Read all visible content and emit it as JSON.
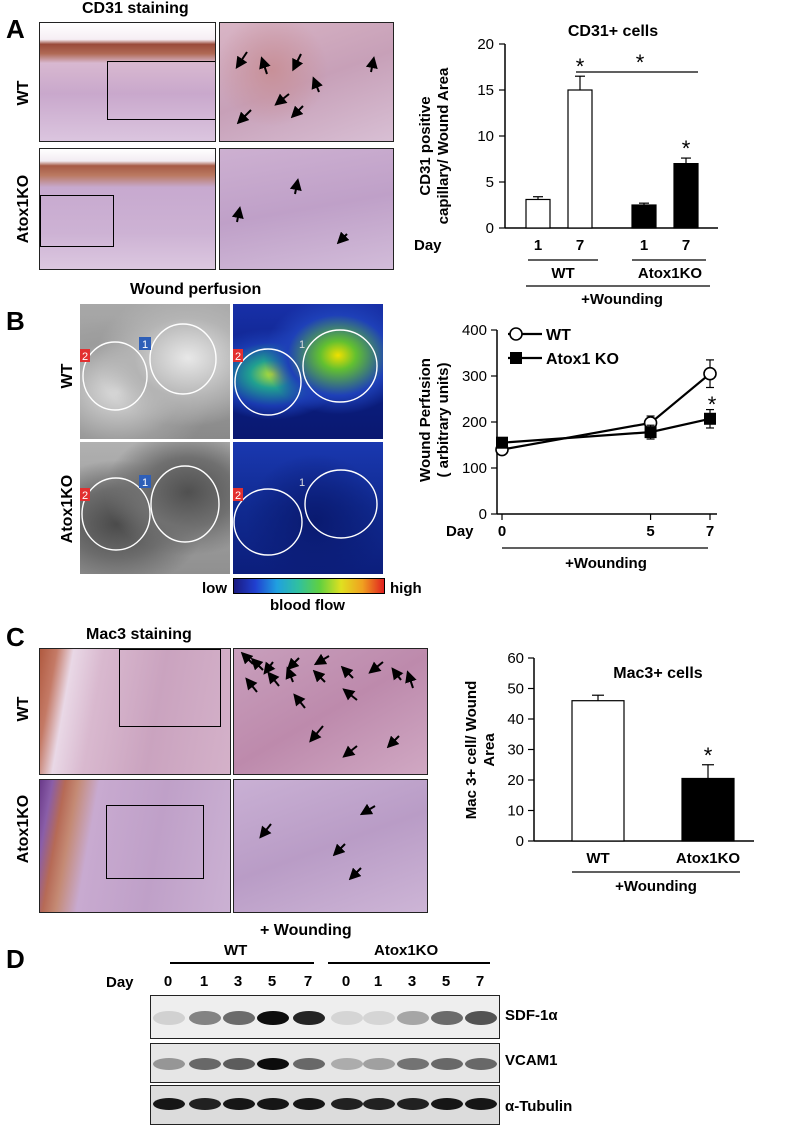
{
  "panelA": {
    "letter": "A",
    "title": "CD31 staining",
    "row_labels": [
      "WT",
      "Atox1KO"
    ],
    "chart_title": "CD31+ cells",
    "ylabel_line1": "CD31 positive",
    "ylabel_line2": "capillary/ Wound Area",
    "day_label": "Day",
    "group_labels": [
      "WT",
      "Atox1KO"
    ],
    "wounding": "+Wounding",
    "sig": "*"
  },
  "panelB": {
    "letter": "B",
    "title": "Wound perfusion",
    "row_labels": [
      "WT",
      "Atox1KO"
    ],
    "roi_labels": [
      "1",
      "2"
    ],
    "scale_low": "low",
    "scale_high": "high",
    "scale_label": "blood flow",
    "ylabel_line1": "Wound Perfusion",
    "ylabel_line2": "( arbitrary units)",
    "day_label": "Day",
    "wounding": "+Wounding",
    "sig": "*"
  },
  "panelC": {
    "letter": "C",
    "title": "Mac3 staining",
    "row_labels": [
      "WT",
      "Atox1KO"
    ],
    "chart_title": "Mac3+ cells",
    "ylabel_line1": "Mac 3+ cell/ Wound",
    "ylabel_line2": "Area",
    "wounding": "+Wounding",
    "sig": "*"
  },
  "panelD": {
    "letter": "D",
    "wounding": "+ Wounding",
    "groups": [
      "WT",
      "Atox1KO"
    ],
    "day_label": "Day",
    "days": [
      "0",
      "1",
      "3",
      "5",
      "7",
      "0",
      "1",
      "3",
      "5",
      "7"
    ],
    "bands": [
      "SDF-1α",
      "VCAM1",
      "α-Tubulin"
    ]
  },
  "chart_data": [
    {
      "type": "bar",
      "title": "CD31+ cells",
      "ylabel": "CD31 positive capillary/ Wound Area",
      "categories": [
        "1",
        "7",
        "1",
        "7"
      ],
      "groups": [
        "WT",
        "WT",
        "Atox1KO",
        "Atox1KO"
      ],
      "values": [
        3.1,
        15.0,
        2.5,
        7.0
      ],
      "errors": [
        0.3,
        1.5,
        0.2,
        0.6
      ],
      "fill": [
        "#ffffff",
        "#ffffff",
        "#000000",
        "#000000"
      ],
      "ylim": [
        0,
        20
      ],
      "yticks": [
        0,
        5,
        10,
        15,
        20
      ]
    },
    {
      "type": "line",
      "ylabel": "Wound Perfusion ( arbitrary units)",
      "x": [
        0,
        5,
        7
      ],
      "xticks": [
        "0",
        "5",
        "7"
      ],
      "ylim": [
        0,
        400
      ],
      "yticks": [
        0,
        100,
        200,
        300,
        400
      ],
      "series": [
        {
          "name": "WT",
          "values": [
            140,
            198,
            305
          ],
          "errors": [
            10,
            15,
            30
          ],
          "marker": "circle-open"
        },
        {
          "name": "Atox1 KO",
          "values": [
            155,
            178,
            207
          ],
          "errors": [
            10,
            15,
            20
          ],
          "marker": "square-filled"
        }
      ]
    },
    {
      "type": "bar",
      "title": "Mac3+ cells",
      "ylabel": "Mac 3+ cell/ Wound Area",
      "categories": [
        "WT",
        "Atox1KO"
      ],
      "values": [
        46,
        20.5
      ],
      "errors": [
        1.8,
        4.5
      ],
      "fill": [
        "#ffffff",
        "#000000"
      ],
      "ylim": [
        0,
        60
      ],
      "yticks": [
        0,
        10,
        20,
        30,
        40,
        50,
        60
      ]
    }
  ]
}
